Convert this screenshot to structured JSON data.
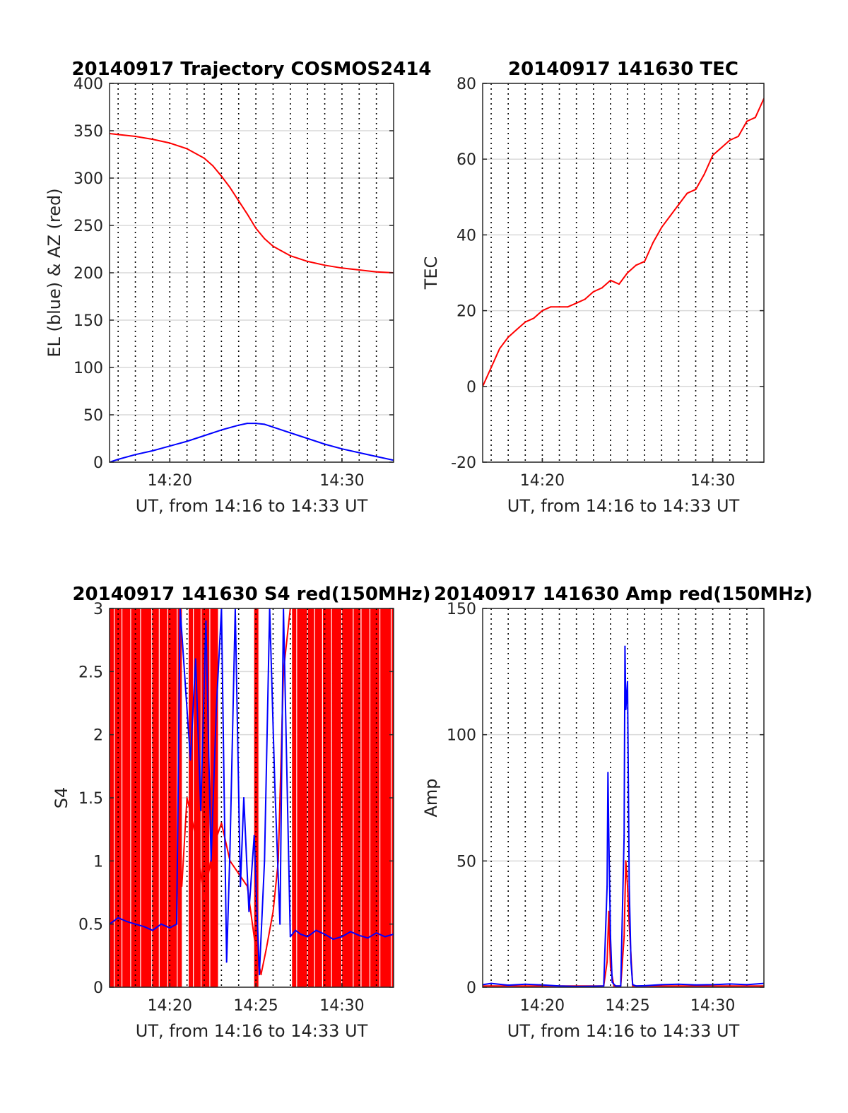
{
  "colors": {
    "red": "#ff0000",
    "blue": "#0000ff",
    "grid": "#d9d9d9",
    "axis": "#262626"
  },
  "chart_data": [
    {
      "type": "line",
      "title": "20140917 Trajectory COSMOS2414",
      "xlabel": "UT, from 14:16 to 14:33 UT",
      "ylabel": "EL (blue) & AZ (red)",
      "xlim": [
        16.5,
        33
      ],
      "ylim": [
        0,
        400
      ],
      "xticks": [
        {
          "v": 20,
          "label": "14:20"
        },
        {
          "v": 30,
          "label": "14:30"
        }
      ],
      "yticks": [
        {
          "v": 0,
          "label": "0"
        },
        {
          "v": 50,
          "label": "50"
        },
        {
          "v": 100,
          "label": "100"
        },
        {
          "v": 150,
          "label": "150"
        },
        {
          "v": 200,
          "label": "200"
        },
        {
          "v": 250,
          "label": "250"
        },
        {
          "v": 300,
          "label": "300"
        },
        {
          "v": 350,
          "label": "350"
        },
        {
          "v": 400,
          "label": "400"
        }
      ],
      "series": [
        {
          "color": "red",
          "x": [
            16.5,
            17,
            18,
            19,
            20,
            21,
            22,
            22.5,
            23,
            23.5,
            24,
            24.5,
            25,
            25.5,
            26,
            26.5,
            27,
            28,
            29,
            30,
            31,
            32,
            33
          ],
          "y": [
            347,
            346,
            344,
            341,
            337,
            331,
            321,
            313,
            302,
            290,
            276,
            262,
            247,
            236,
            228,
            223,
            218,
            212,
            208,
            205,
            203,
            201,
            200
          ]
        },
        {
          "color": "blue",
          "x": [
            16.5,
            17,
            18,
            19,
            20,
            21,
            22,
            23,
            24,
            24.5,
            25,
            25.5,
            26,
            27,
            28,
            29,
            30,
            31,
            32,
            33
          ],
          "y": [
            0,
            3,
            8,
            12,
            17,
            22,
            28,
            34,
            39,
            41,
            41,
            40,
            37,
            31,
            25,
            19,
            14,
            10,
            6,
            2
          ]
        }
      ]
    },
    {
      "type": "line",
      "title": "20140917 141630 TEC",
      "xlabel": "UT, from 14:16 to 14:33 UT",
      "ylabel": "TEC",
      "xlim": [
        16.5,
        33
      ],
      "ylim": [
        -20,
        80
      ],
      "xticks": [
        {
          "v": 20,
          "label": "14:20"
        },
        {
          "v": 30,
          "label": "14:30"
        }
      ],
      "yticks": [
        {
          "v": -20,
          "label": "-20"
        },
        {
          "v": 0,
          "label": "0"
        },
        {
          "v": 20,
          "label": "20"
        },
        {
          "v": 40,
          "label": "40"
        },
        {
          "v": 60,
          "label": "60"
        },
        {
          "v": 80,
          "label": "80"
        }
      ],
      "series": [
        {
          "color": "red",
          "x": [
            16.5,
            17,
            17.5,
            18,
            18.5,
            19,
            19.5,
            20,
            20.5,
            21,
            21.5,
            22,
            22.5,
            23,
            23.5,
            24,
            24.5,
            25,
            25.5,
            26,
            26.5,
            27,
            27.5,
            28,
            28.5,
            29,
            29.5,
            30,
            30.5,
            31,
            31.5,
            32,
            32.5,
            33
          ],
          "y": [
            0,
            5,
            10,
            13,
            15,
            17,
            18,
            20,
            21,
            21,
            21,
            22,
            23,
            25,
            26,
            28,
            27,
            30,
            32,
            33,
            38,
            42,
            45,
            48,
            51,
            52,
            56,
            61,
            63,
            65,
            66,
            70,
            71,
            76
          ]
        }
      ]
    },
    {
      "type": "line",
      "title": "20140917 141630 S4 red(150MHz)",
      "xlabel": "UT, from 14:16 to 14:33 UT",
      "ylabel": "S4",
      "xlim": [
        16.5,
        33
      ],
      "ylim": [
        0,
        3
      ],
      "xticks": [
        {
          "v": 20,
          "label": "14:20"
        },
        {
          "v": 25,
          "label": "14:25"
        },
        {
          "v": 30,
          "label": "14:30"
        }
      ],
      "yticks": [
        {
          "v": 0,
          "label": "0"
        },
        {
          "v": 0.5,
          "label": "0.5"
        },
        {
          "v": 1,
          "label": "1"
        },
        {
          "v": 1.5,
          "label": "1.5"
        },
        {
          "v": 2,
          "label": "2"
        },
        {
          "v": 2.5,
          "label": "2.5"
        },
        {
          "v": 3,
          "label": "3"
        }
      ],
      "series": [
        {
          "color": "red",
          "fill_ranges": [
            [
              16.5,
              20.7
            ],
            [
              21.1,
              22.8
            ],
            [
              24.9,
              25.2
            ],
            [
              27.1,
              33
            ]
          ],
          "x": [
            20.7,
            21,
            21.5,
            22,
            22.5,
            23,
            23.5,
            24,
            24.5,
            25,
            25.3,
            25.6,
            26,
            26.3,
            26.6,
            27
          ],
          "y": [
            0.8,
            1.5,
            1.2,
            0.7,
            1.1,
            1.3,
            1.0,
            0.9,
            0.8,
            0.3,
            0.1,
            0.3,
            0.6,
            1.0,
            2.5,
            3.0
          ]
        },
        {
          "color": "blue",
          "x": [
            16.5,
            17,
            17.5,
            18,
            18.5,
            19,
            19.5,
            20,
            20.4,
            20.6,
            20.9,
            21.2,
            21.5,
            21.8,
            22.1,
            22.4,
            22.7,
            23,
            23.3,
            23.5,
            23.8,
            24.1,
            24.3,
            24.6,
            24.9,
            25.2,
            25.5,
            25.8,
            26.1,
            26.4,
            26.6,
            27.0,
            27.3,
            27.6,
            28,
            28.5,
            29,
            29.5,
            30,
            30.5,
            31,
            31.5,
            32,
            32.5,
            33
          ],
          "y": [
            0.5,
            0.55,
            0.52,
            0.5,
            0.48,
            0.45,
            0.5,
            0.47,
            0.5,
            3.0,
            2.4,
            1.8,
            2.6,
            1.4,
            2.9,
            1.0,
            2.2,
            3.0,
            0.2,
            1.1,
            3.0,
            0.8,
            1.5,
            0.6,
            1.2,
            0.1,
            1.0,
            3.0,
            1.6,
            0.5,
            3.0,
            0.4,
            0.45,
            0.42,
            0.4,
            0.45,
            0.42,
            0.38,
            0.4,
            0.44,
            0.41,
            0.39,
            0.43,
            0.4,
            0.42
          ]
        }
      ]
    },
    {
      "type": "line",
      "title": "20140917 141630 Amp red(150MHz)",
      "xlabel": "UT, from 14:16 to 14:33 UT",
      "ylabel": "Amp",
      "xlim": [
        16.5,
        33
      ],
      "ylim": [
        0,
        150
      ],
      "xticks": [
        {
          "v": 20,
          "label": "14:20"
        },
        {
          "v": 25,
          "label": "14:25"
        },
        {
          "v": 30,
          "label": "14:30"
        }
      ],
      "yticks": [
        {
          "v": 0,
          "label": "0"
        },
        {
          "v": 50,
          "label": "50"
        },
        {
          "v": 100,
          "label": "100"
        },
        {
          "v": 150,
          "label": "150"
        }
      ],
      "series": [
        {
          "color": "red",
          "x": [
            16.5,
            23.6,
            23.8,
            23.9,
            24.0,
            24.2,
            24.6,
            24.8,
            24.9,
            25.0,
            25.1,
            25.3,
            33
          ],
          "y": [
            0.5,
            0.5,
            10,
            30,
            8,
            0.5,
            0.5,
            20,
            50,
            40,
            25,
            0.5,
            0.5
          ]
        },
        {
          "color": "blue",
          "x": [
            16.5,
            17,
            18,
            19,
            20,
            21,
            22,
            23,
            23.6,
            23.8,
            23.85,
            23.9,
            24.0,
            24.1,
            24.3,
            24.6,
            24.8,
            24.85,
            24.9,
            25.0,
            25.05,
            25.1,
            25.2,
            25.3,
            25.5,
            26,
            27,
            28,
            29,
            30,
            31,
            32,
            33
          ],
          "y": [
            1,
            1.5,
            0.8,
            1.2,
            0.9,
            0.5,
            0.3,
            0.4,
            0.5,
            40,
            85,
            60,
            20,
            2,
            0.5,
            0.5,
            60,
            135,
            110,
            121,
            80,
            40,
            10,
            1,
            0.5,
            0.6,
            1,
            1.2,
            0.9,
            1,
            1.3,
            1,
            1.5
          ]
        }
      ]
    }
  ]
}
